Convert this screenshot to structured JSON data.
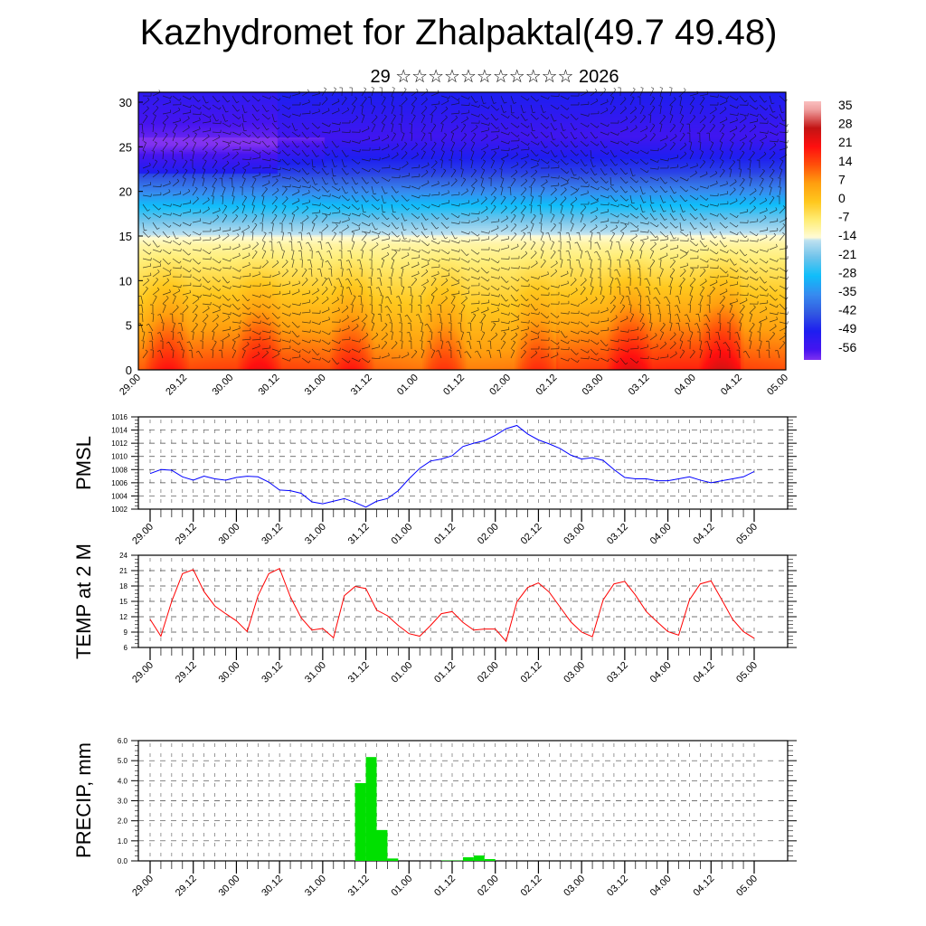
{
  "title": "Kazhydromet for Zhalpaktal(49.7 49.48)",
  "subtitle": "29 ☆☆☆☆☆☆☆☆☆☆☆ 2026",
  "colors": {
    "pmsl_line": "#0000ff",
    "temp_line": "#ff0000",
    "precip_bar": "#00e000"
  },
  "chart_data": [
    {
      "type": "heatmap",
      "name": "vertical cross-section temperature with wind barbs",
      "ylim": [
        0,
        30
      ],
      "y_ticks": [
        "0",
        "5",
        "10",
        "15",
        "20",
        "25",
        "30"
      ],
      "x_tick_labels": [
        "29.00",
        "29.12",
        "30.00",
        "30.12",
        "31.00",
        "31.12",
        "01.00",
        "01.12",
        "02.00",
        "02.12",
        "03.00",
        "03.12",
        "04.00",
        "04.12",
        "05.00"
      ],
      "colorbar_labels": [
        "35",
        "28",
        "21",
        "14",
        "7",
        "0",
        "-7",
        "-14",
        "-21",
        "-28",
        "-35",
        "-42",
        "-49",
        "-56"
      ],
      "colorbar_range": [
        -60,
        38
      ]
    },
    {
      "type": "line",
      "ylabel": "PMSL",
      "ylim": [
        1002,
        1016
      ],
      "y_ticks": [
        "1002",
        "1004",
        "1006",
        "1008",
        "1010",
        "1012",
        "1014",
        "1016"
      ],
      "x_tick_labels": [
        "29.00",
        "29.12",
        "30.00",
        "30.12",
        "31.00",
        "31.12",
        "01.00",
        "01.12",
        "02.00",
        "02.12",
        "03.00",
        "03.12",
        "04.00",
        "04.12",
        "05.00"
      ],
      "step_hours": 3,
      "values": [
        1007.4,
        1008.0,
        1007.9,
        1006.9,
        1006.4,
        1007.0,
        1006.6,
        1006.4,
        1006.8,
        1007.0,
        1006.9,
        1006.1,
        1004.9,
        1004.8,
        1004.4,
        1003.1,
        1002.8,
        1003.2,
        1003.6,
        1003.0,
        1002.3,
        1003.2,
        1003.6,
        1004.8,
        1006.6,
        1008.2,
        1009.3,
        1009.6,
        1010.1,
        1011.5,
        1012.0,
        1012.4,
        1013.2,
        1014.2,
        1014.7,
        1013.4,
        1012.5,
        1011.9,
        1011.2,
        1010.2,
        1009.6,
        1009.8,
        1009.4,
        1008.0,
        1006.8,
        1006.6,
        1006.6,
        1006.3,
        1006.3,
        1006.6,
        1006.9,
        1006.4,
        1006.0,
        1006.3,
        1006.6,
        1006.9,
        1007.7
      ]
    },
    {
      "type": "line",
      "ylabel": "TEMP at 2 M",
      "ylim": [
        6,
        24
      ],
      "y_ticks": [
        "6",
        "9",
        "12",
        "15",
        "18",
        "21",
        "24"
      ],
      "x_tick_labels": [
        "29.00",
        "29.12",
        "30.00",
        "30.12",
        "31.00",
        "31.12",
        "01.00",
        "01.12",
        "02.00",
        "02.12",
        "03.00",
        "03.12",
        "04.00",
        "04.12",
        "05.00"
      ],
      "step_hours": 3,
      "values": [
        11.5,
        8.2,
        15.0,
        20.4,
        21.2,
        16.9,
        14.1,
        12.6,
        11.2,
        9.1,
        16.1,
        20.4,
        21.4,
        15.9,
        11.8,
        9.4,
        9.7,
        7.9,
        16.1,
        17.9,
        17.5,
        13.3,
        12.2,
        10.3,
        8.7,
        8.2,
        10.3,
        12.6,
        13.0,
        10.9,
        9.4,
        9.6,
        9.6,
        7.2,
        14.9,
        17.7,
        18.6,
        16.8,
        13.9,
        11.0,
        9.0,
        8.1,
        15.3,
        18.4,
        18.9,
        16.2,
        13.0,
        11.0,
        9.1,
        8.4,
        15.3,
        18.4,
        19.0,
        15.3,
        11.5,
        9.1,
        7.8
      ]
    },
    {
      "type": "bar",
      "ylabel": "PRECIP, mm",
      "ylim": [
        0,
        6
      ],
      "y_ticks": [
        "0.0",
        "1.0",
        "2.0",
        "3.0",
        "4.0",
        "5.0",
        "6.0"
      ],
      "x_tick_labels": [
        "29.00",
        "29.12",
        "30.00",
        "30.12",
        "31.00",
        "31.12",
        "01.00",
        "01.12",
        "02.00",
        "02.12",
        "03.00",
        "03.12",
        "04.00",
        "04.12",
        "05.00"
      ],
      "step_hours": 3,
      "values": [
        0,
        0,
        0,
        0,
        0,
        0,
        0,
        0,
        0,
        0,
        0,
        0,
        0,
        0,
        0,
        0,
        0,
        0,
        0,
        3.88,
        5.18,
        1.54,
        0.12,
        0,
        0,
        0,
        0,
        0.02,
        0.02,
        0.18,
        0.27,
        0.09,
        0,
        0,
        0,
        0,
        0,
        0,
        0,
        0,
        0,
        0,
        0,
        0,
        0,
        0,
        0,
        0,
        0,
        0,
        0,
        0,
        0,
        0,
        0,
        0
      ]
    }
  ]
}
